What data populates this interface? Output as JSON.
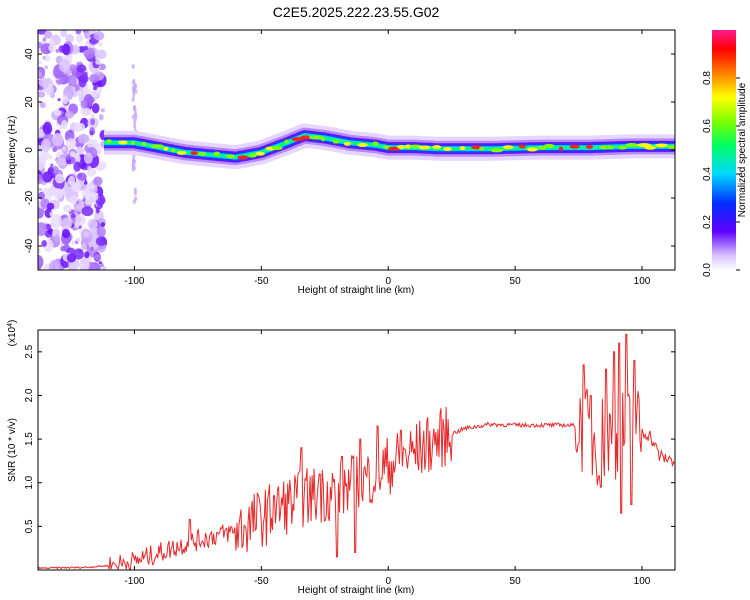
{
  "figure_title": "C2E5.2025.222.23.55.G02",
  "chart_data": [
    {
      "type": "heatmap",
      "xlabel": "Height of straight line (km)",
      "ylabel": "Frequency (Hz)",
      "xlim": [
        -138,
        113
      ],
      "ylim": [
        -50,
        50
      ],
      "x_ticks": [
        -100,
        -50,
        0,
        50,
        100
      ],
      "y_ticks": [
        -40,
        -20,
        0,
        20,
        40
      ],
      "colorbar": {
        "label": "Normalized spectral amplitude",
        "range": [
          0,
          1
        ],
        "ticks": [
          0.0,
          0.2,
          0.4,
          0.6,
          0.8
        ]
      },
      "ridge_trace": [
        [
          -112,
          3
        ],
        [
          -100,
          3
        ],
        [
          -90,
          1
        ],
        [
          -80,
          -1
        ],
        [
          -70,
          -2
        ],
        [
          -60,
          -3
        ],
        [
          -50,
          -1
        ],
        [
          -40,
          3
        ],
        [
          -33,
          6
        ],
        [
          -25,
          5
        ],
        [
          -15,
          3
        ],
        [
          -5,
          2
        ],
        [
          0,
          1
        ],
        [
          10,
          1
        ],
        [
          20,
          0.5
        ],
        [
          40,
          0.5
        ],
        [
          60,
          1
        ],
        [
          80,
          1
        ],
        [
          95,
          1.5
        ],
        [
          113,
          1.5
        ]
      ],
      "noise_region_x": [
        -138,
        -112
      ]
    },
    {
      "type": "line",
      "xlabel": "Height of straight line (km)",
      "ylabel": "SNR (10 * v/v)",
      "y_multiplier": "(x10^4)",
      "xlim": [
        -138,
        113
      ],
      "ylim": [
        0,
        2.75
      ],
      "x_ticks": [
        -100,
        -50,
        0,
        50,
        100
      ],
      "y_ticks": [
        0.5,
        1.0,
        1.5,
        2.0,
        2.5
      ],
      "color": "#e8292a",
      "series": [
        {
          "trend": [
            [
              -138,
              0.02
            ],
            [
              -120,
              0.03
            ],
            [
              -110,
              0.05
            ],
            [
              -100,
              0.1
            ],
            [
              -90,
              0.2
            ],
            [
              -80,
              0.3
            ],
            [
              -70,
              0.38
            ],
            [
              -60,
              0.45
            ],
            [
              -50,
              0.6
            ],
            [
              -40,
              0.75
            ],
            [
              -30,
              0.85
            ],
            [
              -20,
              0.92
            ],
            [
              -10,
              1.02
            ],
            [
              0,
              1.2
            ],
            [
              10,
              1.35
            ],
            [
              20,
              1.5
            ],
            [
              30,
              1.62
            ],
            [
              40,
              1.67
            ],
            [
              50,
              1.66
            ],
            [
              60,
              1.66
            ],
            [
              70,
              1.66
            ],
            [
              75,
              1.65
            ],
            [
              80,
              1.5
            ],
            [
              90,
              1.5
            ],
            [
              98,
              1.6
            ],
            [
              103,
              1.55
            ],
            [
              107,
              1.3
            ],
            [
              113,
              1.25
            ]
          ],
          "peaks": [
            [
              -78,
              0.58
            ],
            [
              -45,
              0.85
            ],
            [
              -34,
              1.4
            ],
            [
              -27,
              1.1
            ],
            [
              -18,
              1.3
            ],
            [
              -11,
              1.5
            ],
            [
              -4,
              1.65
            ],
            [
              5,
              1.6
            ],
            [
              77,
              2.35
            ],
            [
              80,
              2.0
            ],
            [
              86,
              2.3
            ],
            [
              89,
              2.5
            ],
            [
              91,
              2.6
            ],
            [
              94,
              2.7
            ],
            [
              97,
              2.4
            ]
          ],
          "troughs": [
            [
              -20,
              0.15
            ],
            [
              -13,
              0.2
            ],
            [
              84,
              0.95
            ],
            [
              92,
              0.65
            ],
            [
              96,
              0.75
            ]
          ]
        }
      ]
    }
  ]
}
